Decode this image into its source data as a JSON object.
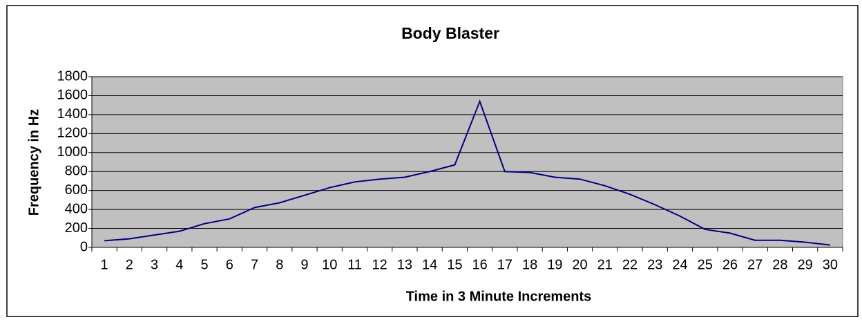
{
  "chart_data": {
    "type": "line",
    "title": "Body Blaster",
    "x_label": "Time in 3 Minute Increments",
    "y_label": "Frequency in Hz",
    "categories": [
      "1",
      "2",
      "3",
      "4",
      "5",
      "6",
      "7",
      "8",
      "9",
      "10",
      "11",
      "12",
      "13",
      "14",
      "15",
      "16",
      "17",
      "18",
      "19",
      "20",
      "21",
      "22",
      "23",
      "24",
      "25",
      "26",
      "27",
      "28",
      "29",
      "30"
    ],
    "series": [
      {
        "name": "Frequency",
        "color": "#000080",
        "values": [
          70,
          90,
          130,
          170,
          250,
          300,
          420,
          470,
          550,
          630,
          690,
          720,
          740,
          800,
          870,
          1540,
          800,
          790,
          740,
          720,
          650,
          560,
          450,
          330,
          190,
          150,
          75,
          75,
          55,
          25
        ]
      }
    ],
    "ylim": [
      0,
      1800
    ],
    "yticks": [
      0,
      200,
      400,
      600,
      800,
      1000,
      1200,
      1400,
      1600,
      1800
    ],
    "grid": true,
    "plot_background": "#c0c0c0"
  }
}
